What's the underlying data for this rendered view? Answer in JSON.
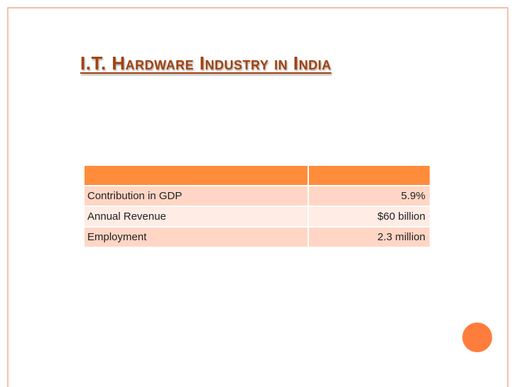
{
  "slide": {
    "title": "I.T. Hardware Industry in India"
  },
  "table": {
    "headers": [
      "",
      ""
    ],
    "rows": [
      {
        "label": "Contribution in GDP",
        "value": "5.9%"
      },
      {
        "label": "Annual Revenue",
        "value": "$60 billion"
      },
      {
        "label": "Employment",
        "value": "2.3 million"
      }
    ]
  },
  "colors": {
    "accent": "#ff8c3a",
    "title": "#a1420e",
    "frame": "#f6c1a9",
    "row_dark": "#ffd6c5",
    "row_light": "#ffece5",
    "decor_circle": "#ff7d3c"
  }
}
